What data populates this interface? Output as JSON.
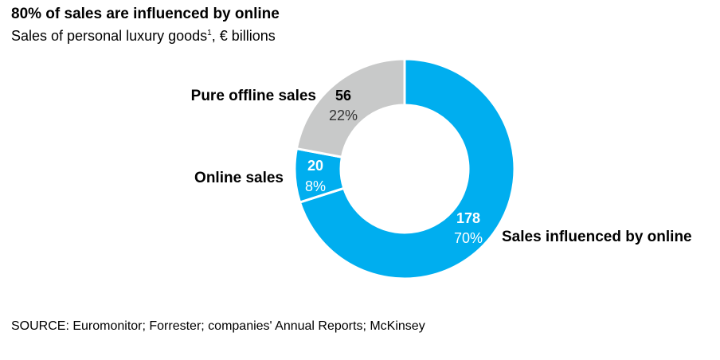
{
  "header": {
    "title": "80% of sales are influenced by online",
    "subtitle": "Sales of personal luxury goods",
    "subtitle_footnote": "1",
    "subtitle_unit": ", € billions"
  },
  "footer": {
    "source": "SOURCE: Euromonitor; Forrester; companies' Annual Reports; McKinsey"
  },
  "chart_data": {
    "type": "pie",
    "donut": true,
    "title": "80% of sales are influenced by online",
    "subtitle": "Sales of personal luxury goods¹, € billions",
    "unit": "€ billions",
    "slices": [
      {
        "label": "Sales influenced by online",
        "value": 178,
        "percent": "70%",
        "color": "#00aeef",
        "value_color": "#ffffff",
        "percent_color": "#ffffff"
      },
      {
        "label": "Online sales",
        "value": 20,
        "percent": "8%",
        "color": "#00aeef",
        "value_color": "#ffffff",
        "percent_color": "#ffffff"
      },
      {
        "label": "Pure offline sales",
        "value": 56,
        "percent": "22%",
        "color": "#c8c9c9",
        "value_color": "#000000",
        "percent_color": "#333333"
      }
    ]
  }
}
